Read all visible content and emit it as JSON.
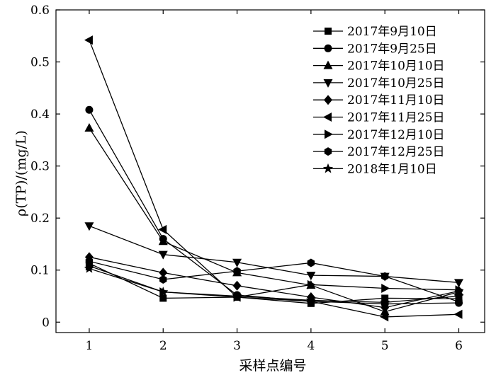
{
  "chart_data": {
    "type": "line",
    "xlabel": "采样点编号",
    "ylabel": "ρ(TP)/(mg/L)",
    "x": [
      1,
      2,
      3,
      4,
      5,
      6
    ],
    "xlim": [
      0.55,
      6.35
    ],
    "ylim": [
      -0.02,
      0.6
    ],
    "xticks": [
      "1",
      "2",
      "3",
      "4",
      "5",
      "6"
    ],
    "yticks": [
      "0",
      "0.1",
      "0.2",
      "0.3",
      "0.4",
      "0.5",
      "0.6"
    ],
    "grid": false,
    "legend_position": "top-right",
    "series": [
      {
        "name": "2017年9月10日",
        "marker": "square",
        "values": [
          0.113,
          0.046,
          0.048,
          0.036,
          0.046,
          0.045
        ]
      },
      {
        "name": "2017年9月25日",
        "marker": "circle",
        "values": [
          0.408,
          0.16,
          0.052,
          0.04,
          0.035,
          0.037
        ]
      },
      {
        "name": "2017年10月10日",
        "marker": "triangle-up",
        "values": [
          0.373,
          0.155,
          0.095,
          0.071,
          0.02,
          0.058
        ]
      },
      {
        "name": "2017年10月25日",
        "marker": "triangle-down",
        "values": [
          0.185,
          0.13,
          0.115,
          0.09,
          0.088,
          0.076
        ]
      },
      {
        "name": "2017年11月10日",
        "marker": "diamond",
        "values": [
          0.125,
          0.095,
          0.07,
          0.048,
          0.028,
          0.06
        ]
      },
      {
        "name": "2017年11月25日",
        "marker": "triangle-left",
        "values": [
          0.542,
          0.178,
          0.048,
          0.04,
          0.01,
          0.015
        ]
      },
      {
        "name": "2017年12月10日",
        "marker": "triangle-right",
        "values": [
          0.108,
          0.058,
          0.048,
          0.072,
          0.065,
          0.062
        ]
      },
      {
        "name": "2017年12月25日",
        "marker": "hexagon",
        "values": [
          0.117,
          0.082,
          0.098,
          0.114,
          0.088,
          0.039
        ]
      },
      {
        "name": "2018年1月10日",
        "marker": "star",
        "values": [
          0.103,
          0.058,
          0.05,
          0.042,
          0.038,
          0.05
        ]
      }
    ]
  }
}
